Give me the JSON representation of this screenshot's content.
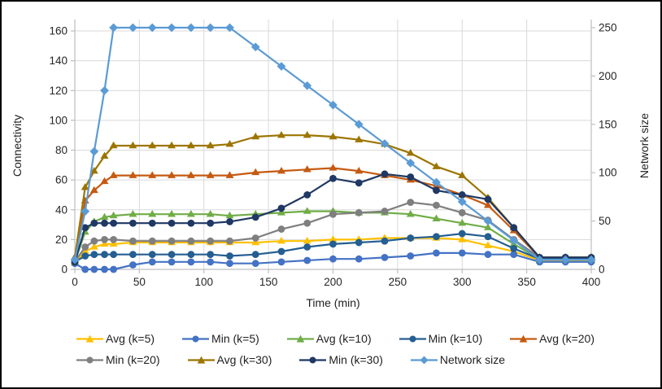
{
  "chart_data": {
    "type": "line",
    "title": "",
    "xlabel": "Time (min)",
    "ylabel_left": "Connectivity",
    "ylabel_right": "Network size",
    "xlim": [
      0,
      400
    ],
    "ylim_left": [
      0,
      160
    ],
    "ylim_right": [
      0,
      250
    ],
    "xticks": [
      0,
      50,
      100,
      150,
      200,
      250,
      300,
      350,
      400
    ],
    "yticks_left": [
      0,
      20,
      40,
      60,
      80,
      100,
      120,
      140,
      160
    ],
    "yticks_right": [
      0,
      50,
      100,
      150,
      200,
      250
    ],
    "grid": true,
    "legend_position": "bottom",
    "legend_rows": [
      5,
      4
    ],
    "x": [
      0,
      8,
      15,
      23,
      30,
      45,
      60,
      75,
      90,
      105,
      120,
      140,
      160,
      180,
      200,
      220,
      240,
      260,
      280,
      300,
      320,
      340,
      360,
      380,
      400
    ],
    "series": [
      {
        "name": "Avg (k=5)",
        "color": "#FFC000",
        "marker": "triangle",
        "axis": "left",
        "values": [
          4,
          12,
          15,
          17,
          17,
          18,
          18,
          18,
          18,
          18,
          18,
          18,
          19,
          19,
          20,
          20,
          21,
          21,
          21,
          20,
          16,
          12,
          6,
          6,
          6
        ]
      },
      {
        "name": "Min (k=5)",
        "color": "#4472C4",
        "marker": "circle",
        "axis": "left",
        "values": [
          4,
          0,
          0,
          0,
          0,
          3,
          5,
          5,
          5,
          5,
          4,
          4,
          5,
          6,
          7,
          7,
          8,
          9,
          11,
          11,
          10,
          10,
          5,
          5,
          5
        ]
      },
      {
        "name": "Avg (k=10)",
        "color": "#70AD47",
        "marker": "triangle",
        "axis": "left",
        "values": [
          5,
          25,
          32,
          35,
          36,
          37,
          37,
          37,
          37,
          37,
          36,
          37,
          38,
          39,
          39,
          38,
          38,
          37,
          34,
          31,
          28,
          17,
          7,
          7,
          7
        ]
      },
      {
        "name": "Min (k=10)",
        "color": "#255E91",
        "marker": "circle",
        "axis": "left",
        "values": [
          5,
          9,
          10,
          10,
          10,
          10,
          10,
          10,
          10,
          10,
          9,
          10,
          12,
          15,
          17,
          18,
          19,
          21,
          22,
          24,
          22,
          14,
          7,
          7,
          7
        ]
      },
      {
        "name": "Avg (k=20)",
        "color": "#C55A11",
        "marker": "triangle",
        "axis": "left",
        "values": [
          8,
          46,
          53,
          59,
          63,
          63,
          63,
          63,
          63,
          63,
          63,
          65,
          66,
          67,
          68,
          66,
          63,
          60,
          56,
          50,
          43,
          26,
          8,
          8,
          8
        ]
      },
      {
        "name": "Min (k=20)",
        "color": "#7F7F7F",
        "marker": "circle",
        "axis": "left",
        "values": [
          5,
          15,
          19,
          20,
          20,
          19,
          19,
          19,
          19,
          19,
          19,
          21,
          27,
          31,
          37,
          38,
          39,
          45,
          43,
          38,
          33,
          20,
          8,
          8,
          8
        ]
      },
      {
        "name": "Avg (k=30)",
        "color": "#9C7500",
        "marker": "triangle",
        "axis": "left",
        "values": [
          8,
          55,
          66,
          76,
          83,
          83,
          83,
          83,
          83,
          83,
          84,
          89,
          90,
          90,
          89,
          87,
          84,
          78,
          69,
          63,
          48,
          28,
          8,
          8,
          8
        ]
      },
      {
        "name": "Min (k=30)",
        "color": "#1F3864",
        "marker": "circle",
        "axis": "left",
        "values": [
          5,
          28,
          31,
          31,
          31,
          31,
          31,
          31,
          31,
          31,
          32,
          35,
          41,
          50,
          61,
          58,
          64,
          62,
          53,
          50,
          47,
          28,
          8,
          8,
          8
        ]
      },
      {
        "name": "Network size",
        "color": "#5B9BD5",
        "marker": "diamond",
        "axis": "right",
        "values": [
          10,
          60,
          122,
          185,
          250,
          250,
          250,
          250,
          250,
          250,
          250,
          230,
          210,
          190,
          170,
          150,
          130,
          110,
          90,
          70,
          50,
          30,
          10,
          10,
          10
        ]
      }
    ],
    "colors": {
      "gridline": "#D9D9D9",
      "axis_line": "#BFBFBF",
      "tick_text": "#262626"
    }
  }
}
